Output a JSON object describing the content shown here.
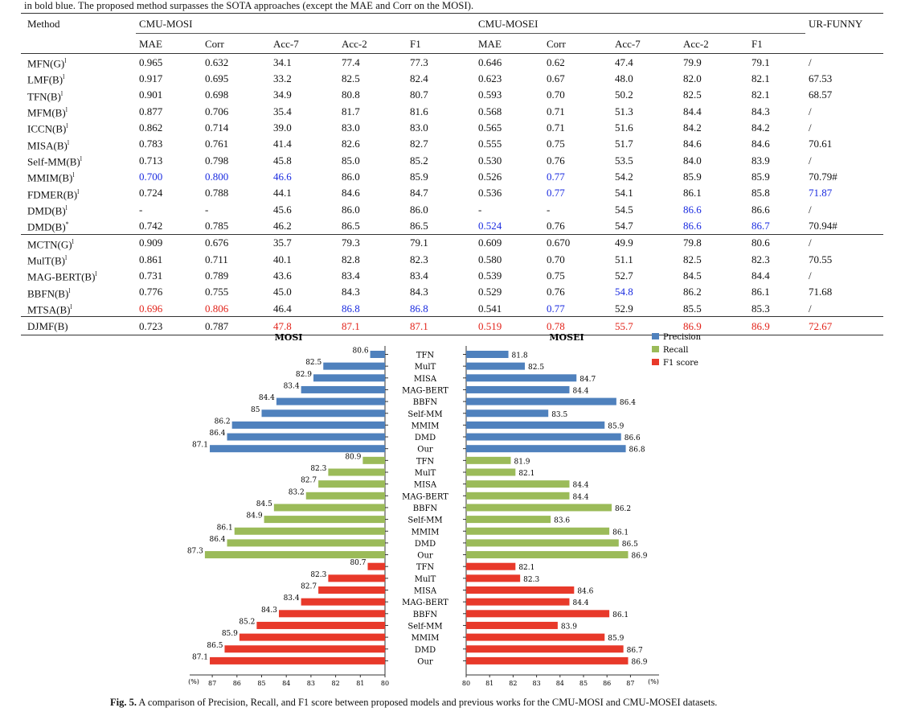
{
  "caption_top": "in bold blue. The proposed method surpasses the SOTA approaches (except the MAE and Corr on the MOSI).",
  "table": {
    "header": {
      "method": "Method",
      "mosi": "CMU-MOSI",
      "mosei": "CMU-MOSEI",
      "funny": "UR-FUNNY",
      "metrics": [
        "MAE",
        "Corr",
        "Acc-7",
        "Acc-2",
        "F1"
      ]
    },
    "colors": {
      "blue": "#1a2be0",
      "red": "#e2231a"
    },
    "groups": [
      [
        {
          "m": "MFN(G)",
          "s": "l",
          "v": [
            "0.965",
            "0.632",
            "34.1",
            "77.4",
            "77.3",
            "0.646",
            "0.62",
            "47.4",
            "79.9",
            "79.1",
            "/"
          ],
          "c": {}
        },
        {
          "m": "LMF(B)",
          "s": "l",
          "v": [
            "0.917",
            "0.695",
            "33.2",
            "82.5",
            "82.4",
            "0.623",
            "0.67",
            "48.0",
            "82.0",
            "82.1",
            "67.53"
          ],
          "c": {}
        },
        {
          "m": "TFN(B)",
          "s": "l",
          "v": [
            "0.901",
            "0.698",
            "34.9",
            "80.8",
            "80.7",
            "0.593",
            "0.70",
            "50.2",
            "82.5",
            "82.1",
            "68.57"
          ],
          "c": {}
        },
        {
          "m": "MFM(B)",
          "s": "l",
          "v": [
            "0.877",
            "0.706",
            "35.4",
            "81.7",
            "81.6",
            "0.568",
            "0.71",
            "51.3",
            "84.4",
            "84.3",
            "/"
          ],
          "c": {}
        },
        {
          "m": "ICCN(B)",
          "s": "l",
          "v": [
            "0.862",
            "0.714",
            "39.0",
            "83.0",
            "83.0",
            "0.565",
            "0.71",
            "51.6",
            "84.2",
            "84.2",
            "/"
          ],
          "c": {}
        },
        {
          "m": "MISA(B)",
          "s": "l",
          "v": [
            "0.783",
            "0.761",
            "41.4",
            "82.6",
            "82.7",
            "0.555",
            "0.75",
            "51.7",
            "84.6",
            "84.6",
            "70.61"
          ],
          "c": {}
        },
        {
          "m": "Self-MM(B)",
          "s": "l",
          "v": [
            "0.713",
            "0.798",
            "45.8",
            "85.0",
            "85.2",
            "0.530",
            "0.76",
            "53.5",
            "84.0",
            "83.9",
            "/"
          ],
          "c": {}
        },
        {
          "m": "MMIM(B)",
          "s": "l",
          "v": [
            "0.700",
            "0.800",
            "46.6",
            "86.0",
            "85.9",
            "0.526",
            "0.77",
            "54.2",
            "85.9",
            "85.9",
            "70.79#"
          ],
          "c": {
            "0": "blue",
            "1": "blue",
            "2": "blue",
            "6": "blue"
          }
        },
        {
          "m": "FDMER(B)",
          "s": "l",
          "v": [
            "0.724",
            "0.788",
            "44.1",
            "84.6",
            "84.7",
            "0.536",
            "0.77",
            "54.1",
            "86.1",
            "85.8",
            "71.87"
          ],
          "c": {
            "6": "blue",
            "10": "blue"
          }
        },
        {
          "m": "DMD(B)",
          "s": "l",
          "v": [
            "-",
            "-",
            "45.6",
            "86.0",
            "86.0",
            "-",
            "-",
            "54.5",
            "86.6",
            "86.6",
            "/"
          ],
          "c": {
            "8": "blue"
          }
        },
        {
          "m": "DMD(B)",
          "s": "*",
          "v": [
            "0.742",
            "0.785",
            "46.2",
            "86.5",
            "86.5",
            "0.524",
            "0.76",
            "54.7",
            "86.6",
            "86.7",
            "70.94#"
          ],
          "c": {
            "5": "blue",
            "8": "blue",
            "9": "blue"
          }
        }
      ],
      [
        {
          "m": "MCTN(G)",
          "s": "l",
          "v": [
            "0.909",
            "0.676",
            "35.7",
            "79.3",
            "79.1",
            "0.609",
            "0.670",
            "49.9",
            "79.8",
            "80.6",
            "/"
          ],
          "c": {}
        },
        {
          "m": "MulT(B)",
          "s": "l",
          "v": [
            "0.861",
            "0.711",
            "40.1",
            "82.8",
            "82.3",
            "0.580",
            "0.70",
            "51.1",
            "82.5",
            "82.3",
            "70.55"
          ],
          "c": {}
        },
        {
          "m": "MAG-BERT(B)",
          "s": "l",
          "v": [
            "0.731",
            "0.789",
            "43.6",
            "83.4",
            "83.4",
            "0.539",
            "0.75",
            "52.7",
            "84.5",
            "84.4",
            "/"
          ],
          "c": {}
        },
        {
          "m": "BBFN(B)",
          "s": "l",
          "v": [
            "0.776",
            "0.755",
            "45.0",
            "84.3",
            "84.3",
            "0.529",
            "0.76",
            "54.8",
            "86.2",
            "86.1",
            "71.68"
          ],
          "c": {
            "7": "blue"
          }
        },
        {
          "m": "MTSA(B)",
          "s": "l",
          "v": [
            "0.696",
            "0.806",
            "46.4",
            "86.8",
            "86.8",
            "0.541",
            "0.77",
            "52.9",
            "85.5",
            "85.3",
            "/"
          ],
          "c": {
            "0": "red",
            "1": "red",
            "3": "blue",
            "4": "blue",
            "6": "blue"
          }
        }
      ],
      [
        {
          "m": "DJMF(B)",
          "s": "",
          "v": [
            "0.723",
            "0.787",
            "47.8",
            "87.1",
            "87.1",
            "0.519",
            "0.78",
            "55.7",
            "86.9",
            "86.9",
            "72.67"
          ],
          "c": {
            "2": "red",
            "3": "red",
            "4": "red",
            "5": "red",
            "6": "red",
            "7": "red",
            "8": "red",
            "9": "red",
            "10": "red"
          }
        }
      ]
    ]
  },
  "chart_data": {
    "type": "bar",
    "orientation": "horizontal",
    "panels": [
      "MOSI",
      "MOSEI"
    ],
    "categories": [
      "TFN",
      "MulT",
      "MISA",
      "MAG-BERT",
      "BBFN",
      "Self-MM",
      "MMIM",
      "DMD",
      "Our"
    ],
    "series": [
      {
        "name": "Precision",
        "color": "#4f81bd",
        "mosi": [
          80.6,
          82.5,
          82.9,
          83.4,
          84.4,
          85.0,
          86.2,
          86.4,
          87.1
        ],
        "mosei": [
          81.8,
          82.5,
          84.7,
          84.4,
          86.4,
          83.5,
          85.9,
          86.6,
          86.8
        ]
      },
      {
        "name": "Recall",
        "color": "#9bbb59",
        "mosi": [
          80.9,
          82.3,
          82.7,
          83.2,
          84.5,
          84.9,
          86.1,
          86.4,
          87.3
        ],
        "mosei": [
          81.9,
          82.1,
          84.4,
          84.4,
          86.2,
          83.6,
          86.1,
          86.5,
          86.9
        ]
      },
      {
        "name": "F1 score",
        "color": "#e8392a",
        "mosi": [
          80.7,
          82.3,
          82.7,
          83.4,
          84.3,
          85.2,
          85.9,
          86.5,
          87.1
        ],
        "mosei": [
          82.1,
          82.3,
          84.6,
          84.4,
          86.1,
          83.9,
          85.9,
          86.7,
          86.9
        ]
      }
    ],
    "mosi_ticks": [
      "87",
      "86",
      "85",
      "84",
      "83",
      "82",
      "81",
      "80"
    ],
    "mosei_ticks": [
      "80",
      "81",
      "82",
      "83",
      "84",
      "85",
      "86",
      "87"
    ],
    "xlim": [
      80,
      87.5
    ],
    "unit_label": "(%)",
    "legend_position": "top-right"
  },
  "fig_caption": {
    "label": "Fig. 5.",
    "text": " A comparison of Precision, Recall, and F1 score between proposed models and previous works for the CMU-MOSI and CMU-MOSEI datasets."
  }
}
